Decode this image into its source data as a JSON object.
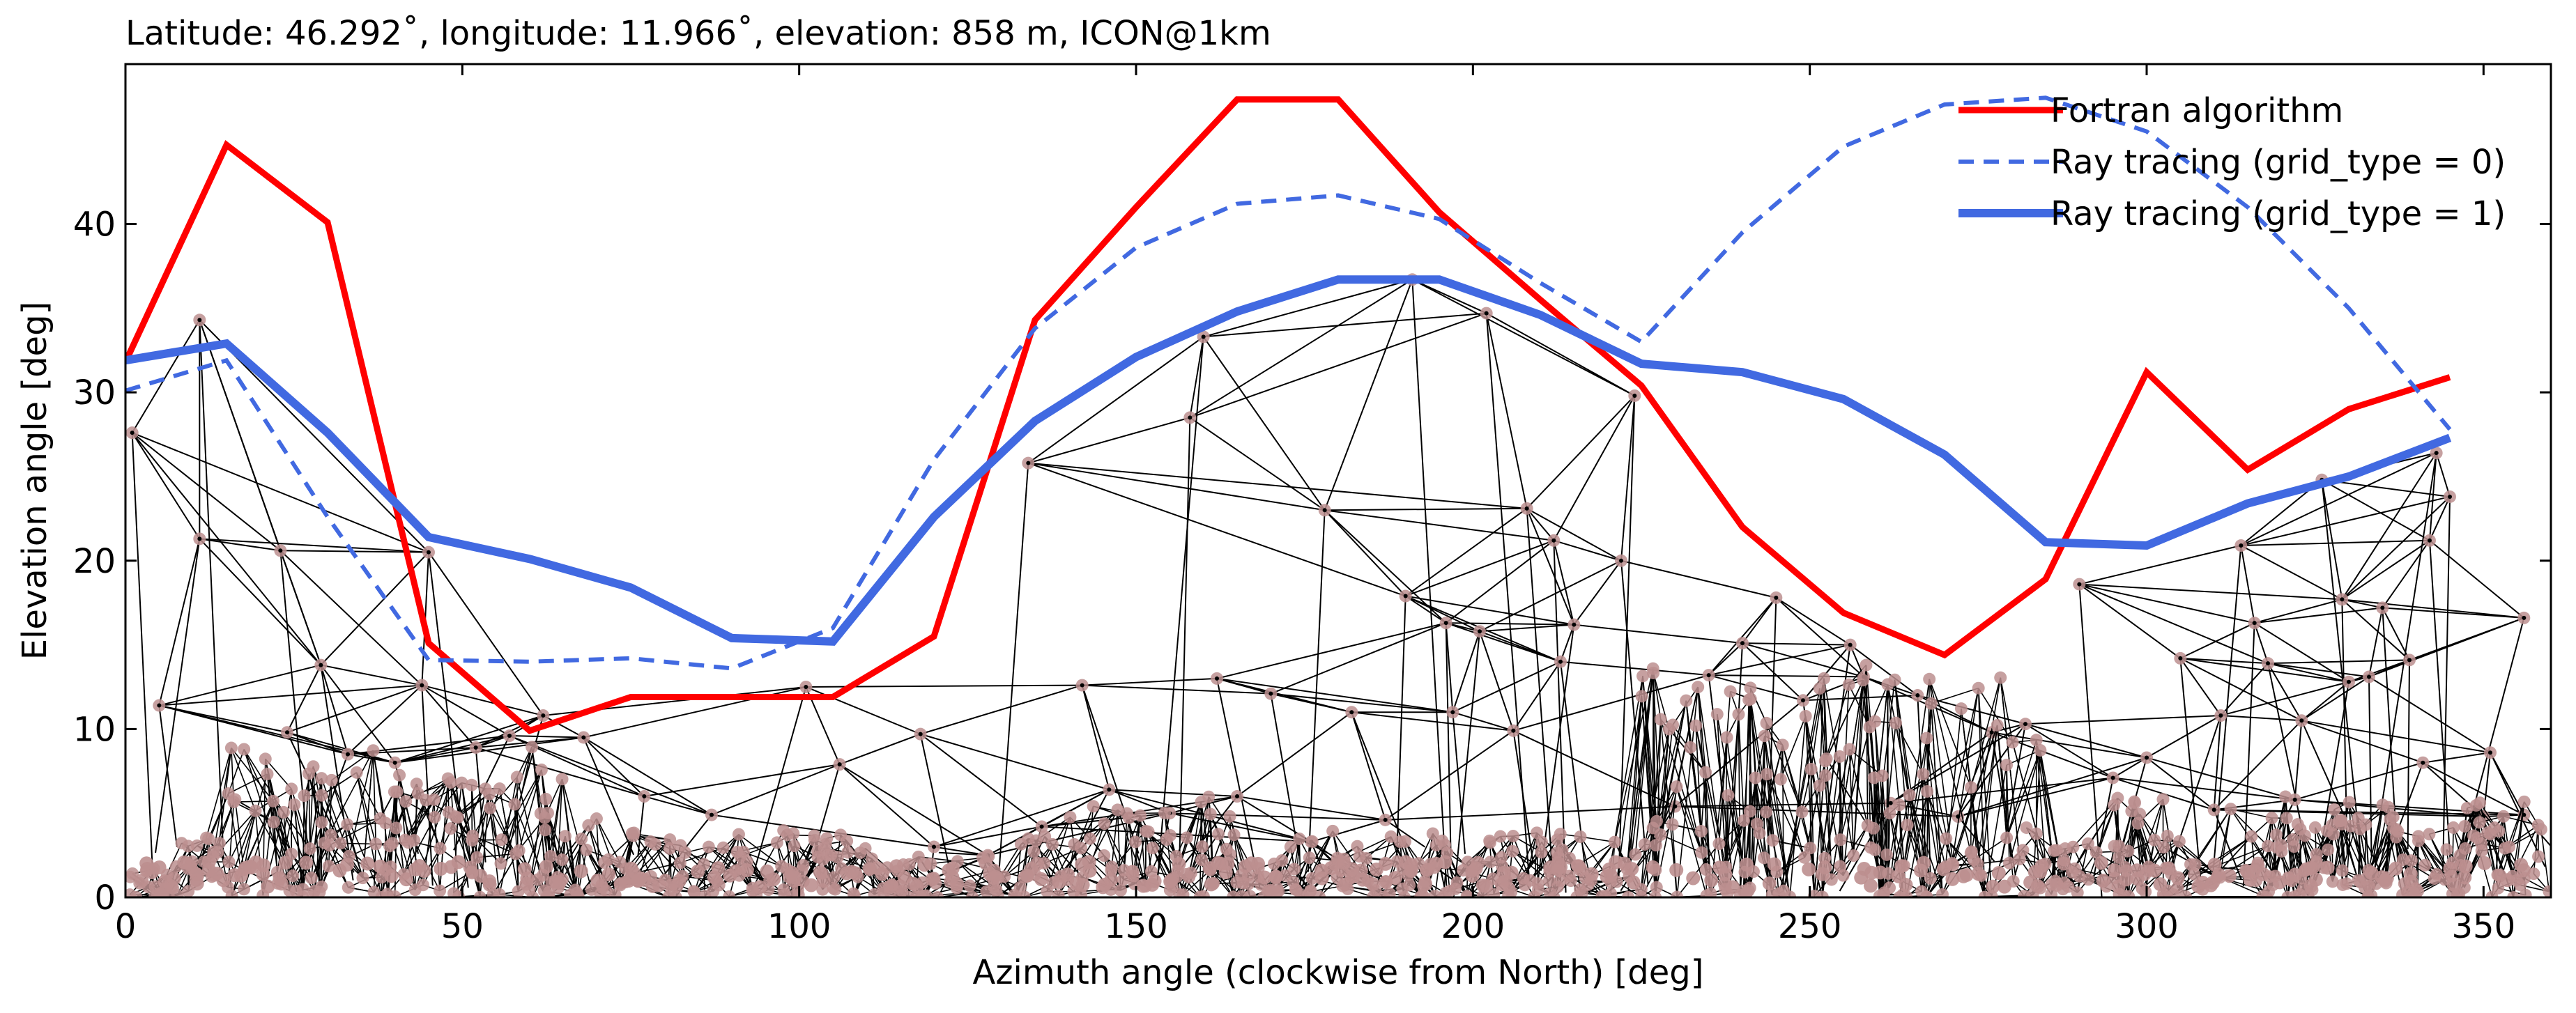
{
  "chart_data": {
    "type": "line",
    "title": "Latitude: 46.292˚, longitude: 11.966˚, elevation: 858 m, ICON@1km",
    "xlabel": "Azimuth angle (clockwise from North) [deg]",
    "ylabel": "Elevation angle [deg]",
    "xlim": [
      0,
      360
    ],
    "ylim": [
      0,
      49.5
    ],
    "xticks": [
      0,
      50,
      100,
      150,
      200,
      250,
      300,
      350
    ],
    "yticks": [
      0,
      10,
      20,
      30,
      40
    ],
    "grid": false,
    "legend_position": "top-right",
    "series": [
      {
        "name": "Fortran algorithm",
        "color": "#ff0000",
        "style": "solid-medium",
        "x": [
          0,
          15,
          30,
          45,
          60,
          75,
          90,
          105,
          120,
          135,
          150,
          165,
          180,
          195,
          210,
          225,
          240,
          255,
          270,
          285,
          300,
          315,
          330,
          345
        ],
        "y": [
          31.8,
          44.7,
          40.1,
          15.1,
          9.9,
          11.9,
          11.9,
          11.9,
          15.5,
          34.3,
          41.0,
          47.4,
          47.4,
          40.7,
          35.5,
          30.4,
          22.0,
          16.9,
          14.4,
          18.9,
          31.2,
          25.4,
          29.0,
          30.9
        ]
      },
      {
        "name": "Ray tracing (grid_type = 0)",
        "color": "#4169e1",
        "style": "dashed",
        "x": [
          0,
          15,
          30,
          45,
          60,
          75,
          90,
          105,
          120,
          135,
          150,
          165,
          180,
          195,
          210,
          225,
          240,
          255,
          270,
          285,
          300,
          315,
          330,
          345
        ],
        "y": [
          30.1,
          31.9,
          22.6,
          14.1,
          14.0,
          14.2,
          13.6,
          16.0,
          26.0,
          33.8,
          38.6,
          41.2,
          41.7,
          40.3,
          36.5,
          33.0,
          39.5,
          44.6,
          47.1,
          47.5,
          45.5,
          41.0,
          35.0,
          27.8
        ]
      },
      {
        "name": "Ray tracing (grid_type = 1)",
        "color": "#4169e1",
        "style": "solid-thick",
        "x": [
          0,
          15,
          30,
          45,
          60,
          75,
          90,
          105,
          120,
          135,
          150,
          165,
          180,
          195,
          210,
          225,
          240,
          255,
          270,
          285,
          300,
          315,
          330,
          345
        ],
        "y": [
          31.9,
          32.9,
          27.6,
          21.4,
          20.1,
          18.4,
          15.4,
          15.2,
          22.6,
          28.3,
          32.1,
          34.8,
          36.7,
          36.7,
          34.6,
          31.7,
          31.2,
          29.6,
          26.3,
          21.1,
          20.9,
          23.4,
          25.0,
          27.3
        ]
      }
    ],
    "terrain_mesh": {
      "description_color_edges": "#000000",
      "marker_color": "#bc8f8f",
      "vertices": [
        [
          1,
          27.6
        ],
        [
          5,
          11.4
        ],
        [
          11,
          34.3
        ],
        [
          11,
          21.3
        ],
        [
          23,
          20.6
        ],
        [
          29,
          13.8
        ],
        [
          45,
          20.5
        ],
        [
          44,
          12.6
        ],
        [
          62,
          10.8
        ],
        [
          68,
          9.5
        ],
        [
          101,
          12.5
        ],
        [
          118,
          9.7
        ],
        [
          134,
          25.8
        ],
        [
          142,
          12.6
        ],
        [
          158,
          28.5
        ],
        [
          162,
          13.0
        ],
        [
          160,
          33.3
        ],
        [
          178,
          23.0
        ],
        [
          182,
          11.0
        ],
        [
          191,
          36.7
        ],
        [
          190,
          17.9
        ],
        [
          202,
          34.7
        ],
        [
          196,
          16.3
        ],
        [
          208,
          23.1
        ],
        [
          212,
          21.2
        ],
        [
          213,
          14.0
        ],
        [
          222,
          20.0
        ],
        [
          224,
          29.8
        ],
        [
          240,
          15.1
        ],
        [
          245,
          17.8
        ],
        [
          256,
          15.0
        ],
        [
          290,
          18.6
        ],
        [
          314,
          20.9
        ],
        [
          316,
          16.3
        ],
        [
          326,
          24.8
        ],
        [
          329,
          17.7
        ],
        [
          335,
          17.2
        ],
        [
          343,
          26.4
        ],
        [
          345,
          23.8
        ],
        [
          342,
          21.2
        ],
        [
          339,
          14.1
        ],
        [
          341,
          8.0
        ],
        [
          351,
          8.6
        ],
        [
          356,
          16.6
        ],
        [
          305,
          14.2
        ],
        [
          318,
          13.9
        ],
        [
          330,
          12.8
        ],
        [
          24,
          9.8
        ],
        [
          33,
          8.5
        ],
        [
          40,
          8.0
        ],
        [
          52,
          8.9
        ],
        [
          57,
          9.6
        ],
        [
          87,
          4.9
        ],
        [
          77,
          6.0
        ],
        [
          106,
          7.9
        ],
        [
          146,
          6.4
        ],
        [
          155,
          5.0
        ],
        [
          165,
          6.0
        ],
        [
          170,
          12.1
        ],
        [
          187,
          4.6
        ],
        [
          197,
          11.0
        ],
        [
          201,
          15.8
        ],
        [
          215,
          16.2
        ],
        [
          206,
          9.9
        ],
        [
          235,
          13.2
        ],
        [
          249,
          11.7
        ],
        [
          258,
          13.1
        ],
        [
          266,
          12.0
        ],
        [
          277,
          9.8
        ],
        [
          282,
          10.3
        ],
        [
          295,
          7.1
        ],
        [
          300,
          8.3
        ],
        [
          311,
          10.8
        ],
        [
          323,
          10.5
        ],
        [
          333,
          13.1
        ],
        [
          350,
          4.8
        ],
        [
          120,
          3.0
        ],
        [
          128,
          2.5
        ],
        [
          136,
          4.2
        ],
        [
          176,
          3.3
        ],
        [
          230,
          5.4
        ],
        [
          262,
          5.6
        ],
        [
          272,
          4.8
        ],
        [
          310,
          5.2
        ],
        [
          322,
          5.8
        ],
        [
          356,
          4.9
        ]
      ]
    }
  }
}
